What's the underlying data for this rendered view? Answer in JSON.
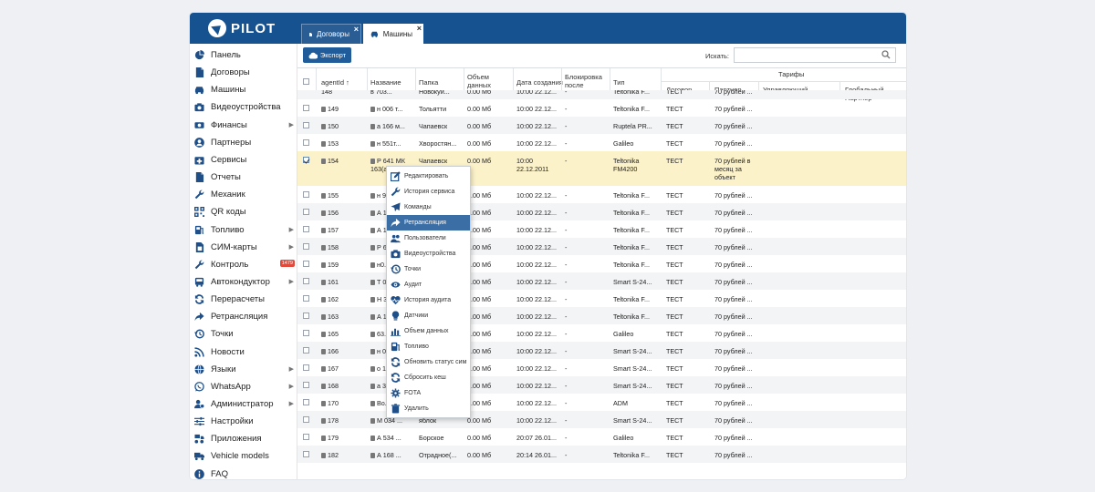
{
  "app": {
    "logo_text": "PILOT",
    "brand_color": "#15528f"
  },
  "tabs": [
    {
      "label": "Договоры",
      "close": "×",
      "icon": "document-icon"
    },
    {
      "label": "Машины",
      "close": "×",
      "icon": "car-icon"
    }
  ],
  "sidebar": {
    "items": [
      {
        "label": "Панель",
        "icon": "pie-chart-icon"
      },
      {
        "label": "Договоры",
        "icon": "document-icon"
      },
      {
        "label": "Машины",
        "icon": "car-icon"
      },
      {
        "label": "Видеоустройства",
        "icon": "camera-icon"
      },
      {
        "label": "Финансы",
        "icon": "money-icon",
        "arrow": "▶"
      },
      {
        "label": "Партнеры",
        "icon": "user-icon"
      },
      {
        "label": "Сервисы",
        "icon": "medkit-icon"
      },
      {
        "label": "Отчеты",
        "icon": "file-icon"
      },
      {
        "label": "Механик",
        "icon": "wrench-icon"
      },
      {
        "label": "QR коды",
        "icon": "qrcode-icon"
      },
      {
        "label": "Топливо",
        "icon": "fuel-icon",
        "arrow": "▶"
      },
      {
        "label": "СИМ-карты",
        "icon": "sim-icon",
        "arrow": "▶"
      },
      {
        "label": "Контроль",
        "icon": "tools-icon",
        "badge": "1479"
      },
      {
        "label": "Автокондуктор",
        "icon": "bus-icon",
        "arrow": "▶"
      },
      {
        "label": "Перерасчеты",
        "icon": "refresh-icon"
      },
      {
        "label": "Ретрансляция",
        "icon": "share-icon"
      },
      {
        "label": "Точки",
        "icon": "history-icon"
      },
      {
        "label": "Новости",
        "icon": "rss-icon"
      },
      {
        "label": "Языки",
        "icon": "globe-icon",
        "arrow": "▶"
      },
      {
        "label": "WhatsApp",
        "icon": "whatsapp-icon",
        "arrow": "▶"
      },
      {
        "label": "Администратор",
        "icon": "admin-icon",
        "arrow": "▶"
      },
      {
        "label": "Настройки",
        "icon": "sliders-icon"
      },
      {
        "label": "Приложения",
        "icon": "apps-icon"
      },
      {
        "label": "Vehicle models",
        "icon": "vehicle-models-icon"
      },
      {
        "label": "FAQ",
        "icon": "info-icon"
      }
    ]
  },
  "toolbar": {
    "export_label": "Экспорт",
    "search_label": "Искать:",
    "search_value": ""
  },
  "table": {
    "headers": {
      "agent_id": "agentId ↑",
      "name": "Название",
      "folder": "Папка",
      "data_volume": "Объем данных",
      "created": "Дата создания",
      "block_after": "Блокировка после",
      "type": "Тип",
      "tariffs": "Тарифы",
      "contract": "Договор",
      "partner": "Партнер",
      "manager": "Управляющий",
      "global_partner": "Глобальный Партнер"
    },
    "partial_top": [
      "148",
      "в 703...",
      "Новокуй...",
      "0.00 Мб",
      "10:00 22.12...",
      "-",
      "Teltonika F...",
      "ТЕСТ",
      "70 рублей ..."
    ],
    "rows": [
      {
        "id": "149",
        "name": "н 006 т...",
        "folder": "Тольятти",
        "data": "0.00 Мб",
        "created": "10:00 22.12...",
        "block": "-",
        "type": "Teltonika F...",
        "contract": "ТЕСТ",
        "partner": "70 рублей ..."
      },
      {
        "id": "150",
        "name": "а 166 м...",
        "folder": "Чапаевск",
        "data": "0.00 Мб",
        "created": "10:00 22.12...",
        "block": "-",
        "type": "Ruptela PR...",
        "contract": "ТЕСТ",
        "partner": "70 рублей ..."
      },
      {
        "id": "153",
        "name": "н 551т...",
        "folder": "Хворостян...",
        "data": "0.00 Мб",
        "created": "10:00 22.12...",
        "block": "-",
        "type": "Galileo",
        "contract": "ТЕСТ",
        "partner": "70 рублей ..."
      },
      {
        "id": "154",
        "name": "Р 641 МК 163(а1...",
        "folder": "Чапаевск",
        "data": "0.00 Мб",
        "created": "10:00 22.12.2011",
        "block": "-",
        "type": "Teltonika FM4200",
        "contract": "ТЕСТ",
        "partner": "70 рублей в месяц за объект",
        "selected": true
      },
      {
        "id": "155",
        "name": "н 9...",
        "folder": "",
        "data": "0.00 Мб",
        "created": "10:00 22.12...",
        "block": "-",
        "type": "Teltonika F...",
        "contract": "ТЕСТ",
        "partner": "70 рублей ..."
      },
      {
        "id": "156",
        "name": "А 1...",
        "folder": "",
        "data": "0.00 Мб",
        "created": "10:00 22.12...",
        "block": "-",
        "type": "Teltonika F...",
        "contract": "ТЕСТ",
        "partner": "70 рублей ..."
      },
      {
        "id": "157",
        "name": "А 1...",
        "folder": "",
        "data": "0.00 Мб",
        "created": "10:00 22.12...",
        "block": "-",
        "type": "Teltonika F...",
        "contract": "ТЕСТ",
        "partner": "70 рублей ..."
      },
      {
        "id": "158",
        "name": "Р 6...",
        "folder": "",
        "data": "0.00 Мб",
        "created": "10:00 22.12...",
        "block": "-",
        "type": "Teltonika F...",
        "contract": "ТЕСТ",
        "partner": "70 рублей ..."
      },
      {
        "id": "159",
        "name": "н0...",
        "folder": "",
        "data": "0.00 Мб",
        "created": "10:00 22.12...",
        "block": "-",
        "type": "Teltonika F...",
        "contract": "ТЕСТ",
        "partner": "70 рублей ..."
      },
      {
        "id": "161",
        "name": "Т 0...",
        "folder": "",
        "data": "0.00 Мб",
        "created": "10:00 22.12...",
        "block": "-",
        "type": "Smart S-24...",
        "contract": "ТЕСТ",
        "partner": "70 рублей ..."
      },
      {
        "id": "162",
        "name": "Н 3...",
        "folder": "",
        "data": "0.00 Мб",
        "created": "10:00 22.12...",
        "block": "-",
        "type": "Teltonika F...",
        "contract": "ТЕСТ",
        "partner": "70 рублей ..."
      },
      {
        "id": "163",
        "name": "А 1...",
        "folder": "",
        "data": "0.00 Мб",
        "created": "10:00 22.12...",
        "block": "-",
        "type": "Teltonika F...",
        "contract": "ТЕСТ",
        "partner": "70 рублей ..."
      },
      {
        "id": "165",
        "name": "63...",
        "folder": "",
        "data": "0.00 Мб",
        "created": "10:00 22.12...",
        "block": "-",
        "type": "Galileo",
        "contract": "ТЕСТ",
        "partner": "70 рублей ..."
      },
      {
        "id": "166",
        "name": "н 0...",
        "folder": "",
        "data": "0.00 Мб",
        "created": "10:00 22.12...",
        "block": "-",
        "type": "Smart S-24...",
        "contract": "ТЕСТ",
        "partner": "70 рублей ..."
      },
      {
        "id": "167",
        "name": "о 1...",
        "folder": "",
        "data": "0.00 Мб",
        "created": "10:00 22.12...",
        "block": "-",
        "type": "Smart S-24...",
        "contract": "ТЕСТ",
        "partner": "70 рублей ..."
      },
      {
        "id": "168",
        "name": "а 3...",
        "folder": "",
        "data": "0.00 Мб",
        "created": "10:00 22.12...",
        "block": "-",
        "type": "Smart S-24...",
        "contract": "ТЕСТ",
        "partner": "70 рублей ..."
      },
      {
        "id": "170",
        "name": "Во...",
        "folder": "",
        "data": "0.00 Мб",
        "created": "10:00 22.12...",
        "block": "-",
        "type": "ADM",
        "contract": "ТЕСТ",
        "partner": "70 рублей ..."
      },
      {
        "id": "178",
        "name": "М 034 ...",
        "folder": "яблок",
        "data": "0.00 Мб",
        "created": "10:00 22.12...",
        "block": "-",
        "type": "Smart S-24...",
        "contract": "ТЕСТ",
        "partner": "70 рублей ..."
      },
      {
        "id": "179",
        "name": "А 534 ...",
        "folder": "Борское",
        "data": "0.00 Мб",
        "created": "20:07 26.01...",
        "block": "-",
        "type": "Galileo",
        "contract": "ТЕСТ",
        "partner": "70 рублей ..."
      },
      {
        "id": "182",
        "name": "А 168 ...",
        "folder": "Отрадное(...",
        "data": "0.00 Мб",
        "created": "20:14 26.01...",
        "block": "-",
        "type": "Teltonika F...",
        "contract": "ТЕСТ",
        "partner": "70 рублей ..."
      }
    ]
  },
  "context_menu": {
    "active_index": 3,
    "items": [
      {
        "label": "Редактировать",
        "icon": "edit-icon"
      },
      {
        "label": "История сервиса",
        "icon": "tools-icon"
      },
      {
        "label": "Команды",
        "icon": "paper-plane-icon"
      },
      {
        "label": "Ретрансляция",
        "icon": "share-icon"
      },
      {
        "label": "Пользователи",
        "icon": "users-icon"
      },
      {
        "label": "Видеоустройства",
        "icon": "camera-icon"
      },
      {
        "label": "Точки",
        "icon": "history-icon"
      },
      {
        "label": "Аудит",
        "icon": "eye-icon"
      },
      {
        "label": "История аудита",
        "icon": "heartbeat-icon"
      },
      {
        "label": "Датчики",
        "icon": "bulb-icon"
      },
      {
        "label": "Объем данных",
        "icon": "bar-chart-icon"
      },
      {
        "label": "Топливо",
        "icon": "fuel-icon"
      },
      {
        "label": "Обновить статус сим",
        "icon": "refresh-icon"
      },
      {
        "label": "Сбросить кеш",
        "icon": "refresh-icon"
      },
      {
        "label": "FOTA",
        "icon": "cogs-icon"
      },
      {
        "label": "Удалить",
        "icon": "trash-icon"
      }
    ]
  }
}
